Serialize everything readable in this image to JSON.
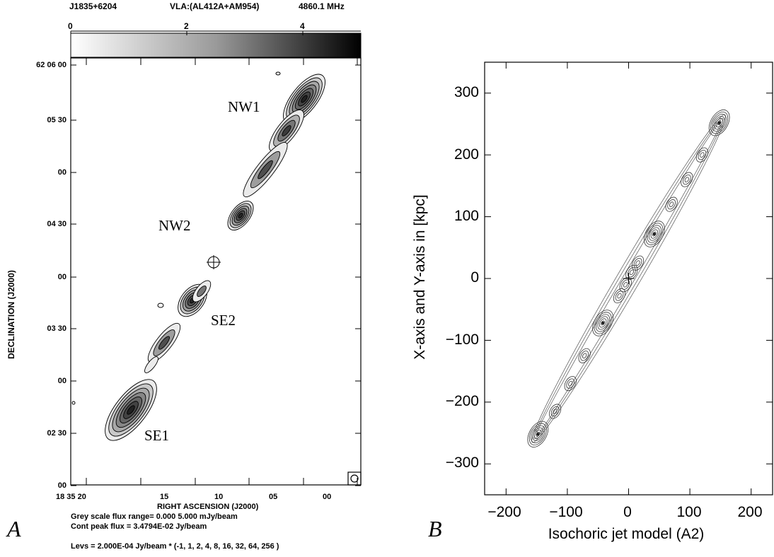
{
  "chart_data": [
    {
      "panel": "A",
      "type": "contour",
      "header": {
        "source": "J1835+6204",
        "instrument": "VLA:(AL412A+AM954)",
        "frequency": "4860.1 MHz"
      },
      "colorbar": {
        "ticks": [
          "0",
          "2",
          "4"
        ],
        "range": [
          0,
          5
        ]
      },
      "xlabel": "RIGHT ASCENSION (J2000)",
      "ylabel": "DECLINATION (J2000)",
      "xtick_labels": [
        "18 35 20",
        "15",
        "10",
        "05",
        "00"
      ],
      "ytick_labels": [
        "62 06 00",
        "05 30",
        "00",
        "04 30",
        "00",
        "03 30",
        "00",
        "02 30",
        "00"
      ],
      "components": [
        {
          "name": "NW1"
        },
        {
          "name": "NW2"
        },
        {
          "name": "SE2"
        },
        {
          "name": "SE1"
        }
      ],
      "footer": {
        "grey_range": "Grey scale flux range= 0.000 5.000 mJy/beam",
        "cont_peak": "Cont peak flux =  3.4794E-02 Jy/beam",
        "levels": "Levs = 2.000E-04 Jy/beam * (-1, 1, 2, 4, 8, 16, 32, 64, 256 )"
      }
    },
    {
      "panel": "B",
      "type": "contour",
      "xlabel": "Isochoric jet model (A2)",
      "ylabel": "X-axis and Y-axis in [kpc]",
      "xlim": [
        -235,
        235
      ],
      "ylim": [
        -350,
        350
      ],
      "xticks": [
        -200,
        -100,
        0,
        100,
        200
      ],
      "yticks": [
        300,
        200,
        100,
        0,
        -100,
        -200,
        -300
      ],
      "xtick_labels": [
        "−200",
        "−100",
        "0",
        "100",
        "200"
      ],
      "ytick_labels": [
        "300",
        "200",
        "100",
        "0",
        "−100",
        "−200",
        "−300"
      ],
      "knots_kpc": [
        {
          "x": 148,
          "y": 252
        },
        {
          "x": 120,
          "y": 200
        },
        {
          "x": 95,
          "y": 160
        },
        {
          "x": 70,
          "y": 120
        },
        {
          "x": 42,
          "y": 72
        },
        {
          "x": 15,
          "y": 25
        },
        {
          "x": 5,
          "y": 10
        },
        {
          "x": -5,
          "y": -10
        },
        {
          "x": -15,
          "y": -28
        },
        {
          "x": -42,
          "y": -72
        },
        {
          "x": -72,
          "y": -125
        },
        {
          "x": -95,
          "y": -170
        },
        {
          "x": -120,
          "y": -215
        },
        {
          "x": -148,
          "y": -252
        }
      ]
    }
  ],
  "panels": {
    "a_letter": "A",
    "b_letter": "B"
  }
}
